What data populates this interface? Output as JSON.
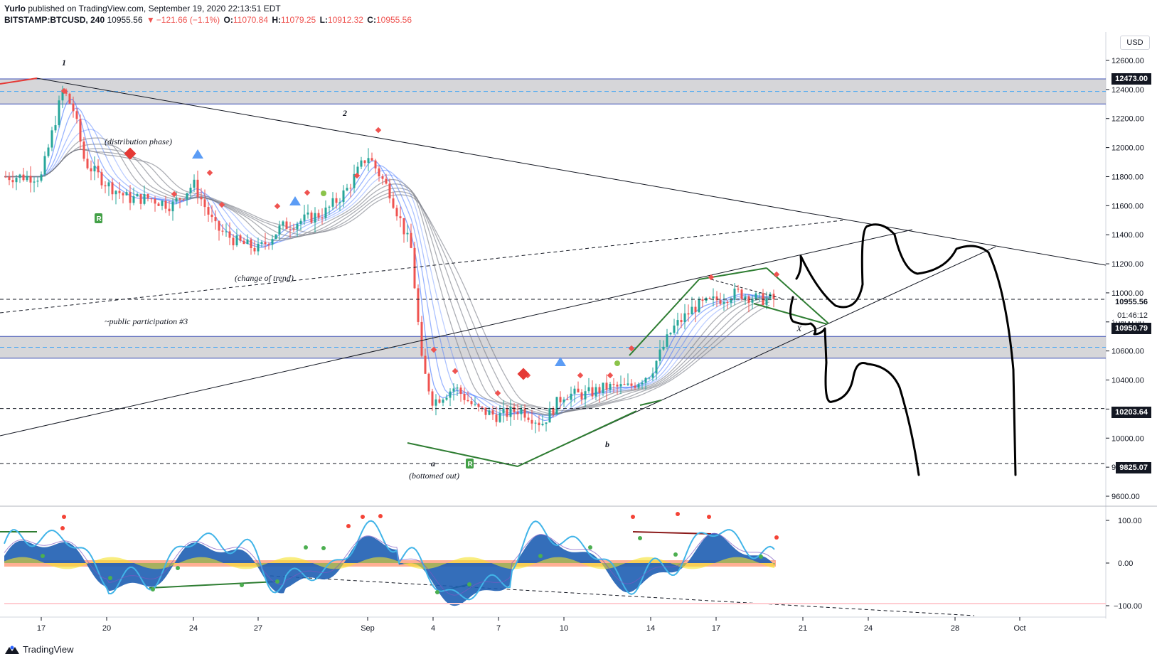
{
  "header": {
    "publisher": "Yurlo",
    "published_text": "published on TradingView.com, September 19, 2020 22:13:51 EDT",
    "symbol": "BITSTAMP:BTCUSD, 240",
    "last": "10955.56",
    "change_arrow": "▼",
    "change": "−121.66 (−1.1%)",
    "o_label": "O:",
    "o_value": "11070.84",
    "h_label": "H:",
    "h_value": "11079.25",
    "l_label": "L:",
    "l_value": "10912.32",
    "c_label": "C:",
    "c_value": "10955.56"
  },
  "currency_label": "USD",
  "footer": {
    "brand": "TradingView",
    "logo_icon": "tradingview-logo-icon"
  },
  "price_labels": {
    "top_zone": "12473.00",
    "last_price": "10955.56",
    "countdown": "01:46:12",
    "mid": "10950.79",
    "support": "10203.64",
    "low": "9825.07"
  },
  "annotations": {
    "wave1": "1",
    "wave2": "2",
    "distribution": "(distribution phase)",
    "change_of_trend": "(change of trend)",
    "public_participation": "~public participation #3",
    "wave_a": "a",
    "bottomed_out": "(bottomed out)",
    "wave_b": "b",
    "wave_x": "X"
  },
  "colors": {
    "bull": "#26a69a",
    "bear": "#ef5350",
    "ribbon_blue": "#2962ff",
    "ribbon_grey": "#787b86",
    "zone_fill": "#c8c8cc",
    "zone_line": "#3f51b5",
    "trend_green": "#2e7d32",
    "osc_blue": "#1e5eb3",
    "osc_cyan": "#41b4e8",
    "osc_yellow": "#f5e12a",
    "osc_orange": "#ff6d3a"
  },
  "chart_data": {
    "type": "candlestick",
    "symbol": "BITSTAMP:BTCUSD",
    "timeframe": "240",
    "y_axis": {
      "ticks": [
        12600,
        12400,
        12200,
        12000,
        11800,
        11600,
        11400,
        11200,
        11000,
        10800,
        10600,
        10400,
        10200,
        10000,
        9800,
        9600
      ],
      "range": [
        9560,
        12760
      ]
    },
    "x_axis": {
      "ticks": [
        "17",
        "20",
        "24",
        "27",
        "Sep",
        "4",
        "7",
        "10",
        "14",
        "17",
        "21",
        "24",
        "28",
        "Oct"
      ]
    },
    "oscillator_axis": {
      "ticks": [
        100.0,
        0.0,
        -100.0
      ]
    },
    "price_path": [
      [
        "Aug 17",
        11800
      ],
      [
        "Aug 18",
        12400
      ],
      [
        "Aug 18 12h",
        12250
      ],
      [
        "Aug 19",
        11900
      ],
      [
        "Aug 20",
        11750
      ],
      [
        "Aug 21",
        11650
      ],
      [
        "Aug 22",
        11650
      ],
      [
        "Aug 23",
        11600
      ],
      [
        "Aug 24",
        11750
      ],
      [
        "Aug 25",
        11450
      ],
      [
        "Aug 26",
        11350
      ],
      [
        "Aug 27",
        11300
      ],
      [
        "Aug 28",
        11450
      ],
      [
        "Aug 29",
        11500
      ],
      [
        "Aug 30",
        11550
      ],
      [
        "Aug 31",
        11700
      ],
      [
        "Sep 1",
        11950
      ],
      [
        "Sep 2",
        11700
      ],
      [
        "Sep 3",
        11300
      ],
      [
        "Sep 3 12h",
        10500
      ],
      [
        "Sep 4",
        10250
      ],
      [
        "Sep 5",
        10350
      ],
      [
        "Sep 6",
        10200
      ],
      [
        "Sep 7",
        10150
      ],
      [
        "Sep 8",
        10200
      ],
      [
        "Sep 9",
        10100
      ],
      [
        "Sep 10",
        10300
      ],
      [
        "Sep 11",
        10300
      ],
      [
        "Sep 12",
        10350
      ],
      [
        "Sep 13",
        10350
      ],
      [
        "Sep 14",
        10450
      ],
      [
        "Sep 15",
        10750
      ],
      [
        "Sep 16",
        10900
      ],
      [
        "Sep 17",
        10950
      ],
      [
        "Sep 18",
        11000
      ],
      [
        "Sep 19",
        10955.56
      ]
    ],
    "zones": [
      {
        "from": 12300,
        "to": 12473
      },
      {
        "from": 10550,
        "to": 10700
      }
    ],
    "horizontal_levels": [
      10955.56,
      10203.64,
      9825.07
    ]
  }
}
